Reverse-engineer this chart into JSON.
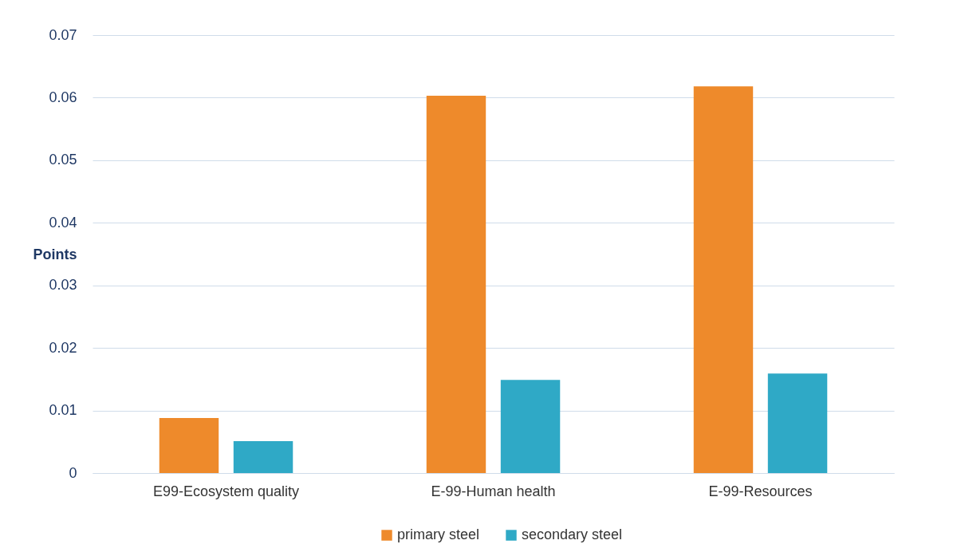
{
  "chart_data": {
    "type": "bar",
    "ylabel": "Points",
    "categories": [
      "E99-Ecosystem quality",
      "E-99-Human health",
      "E-99-Resources"
    ],
    "series": [
      {
        "name": "primary steel",
        "color": "#ee8a2b",
        "values": [
          0.0088,
          0.0603,
          0.0618
        ]
      },
      {
        "name": "secondary steel",
        "color": "#2fa9c6",
        "values": [
          0.0051,
          0.0149,
          0.0159
        ]
      }
    ],
    "ylim": [
      0,
      0.07
    ],
    "yticks": [
      0,
      0.01,
      0.02,
      0.03,
      0.04,
      0.05,
      0.06,
      0.07
    ],
    "grid": "y",
    "legend": "bottom"
  }
}
